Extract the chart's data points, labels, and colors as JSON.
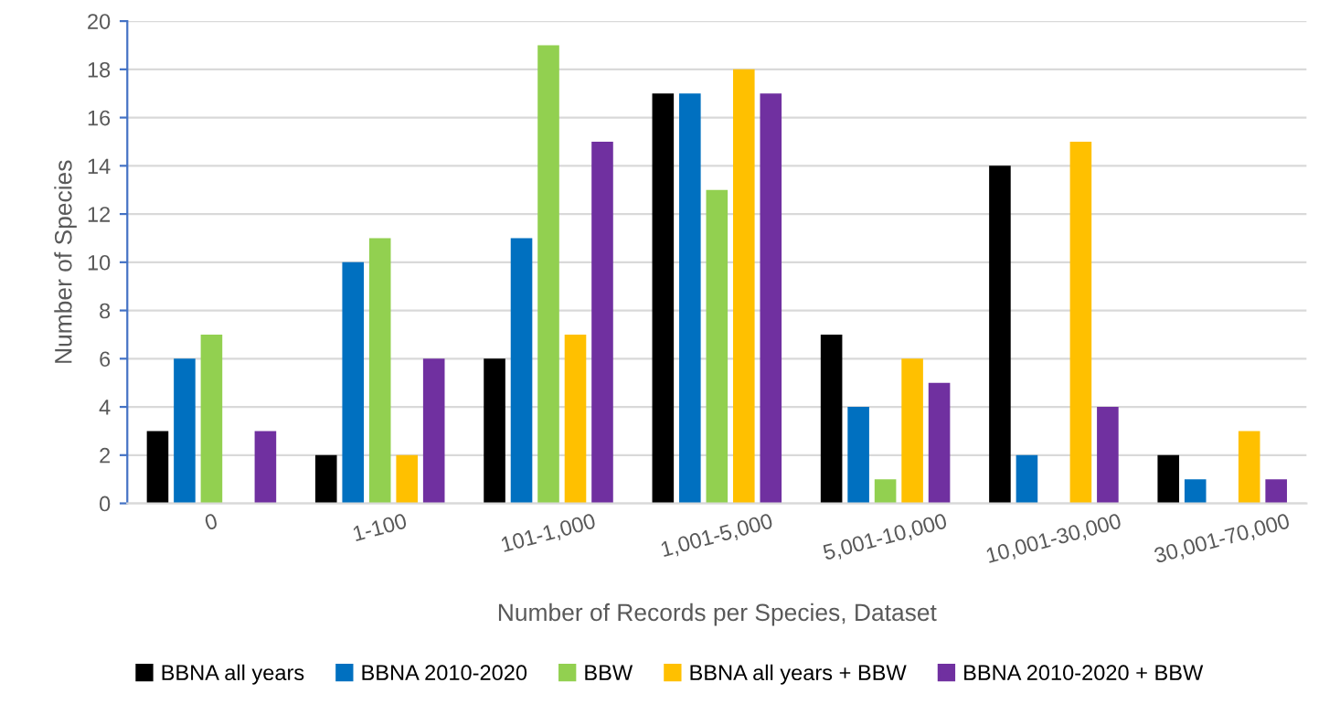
{
  "chart_data": {
    "type": "bar",
    "xlabel": "Number of Records per Species, Dataset",
    "ylabel": "Number of Species",
    "categories": [
      "0",
      "1-100",
      "101-1,000",
      "1,001-5,000",
      "5,001-10,000",
      "10,001-30,000",
      "30,001-70,000"
    ],
    "series": [
      {
        "name": "BBNA all years",
        "color": "#000000",
        "values": [
          3,
          2,
          6,
          17,
          7,
          14,
          2
        ]
      },
      {
        "name": "BBNA 2010-2020",
        "color": "#0070c0",
        "values": [
          6,
          10,
          11,
          17,
          4,
          2,
          1
        ]
      },
      {
        "name": "BBW",
        "color": "#92d050",
        "values": [
          7,
          11,
          19,
          13,
          1,
          0,
          0
        ]
      },
      {
        "name": "BBNA all years + BBW",
        "color": "#ffc000",
        "values": [
          0,
          2,
          7,
          18,
          6,
          15,
          3
        ]
      },
      {
        "name": "BBNA 2010-2020 + BBW",
        "color": "#7030a0",
        "values": [
          3,
          6,
          15,
          17,
          5,
          4,
          1
        ]
      }
    ],
    "ylim": [
      0,
      20
    ],
    "yticks": [
      0,
      2,
      4,
      6,
      8,
      10,
      12,
      14,
      16,
      18,
      20
    ],
    "grid": "y",
    "legend": "bottom"
  }
}
